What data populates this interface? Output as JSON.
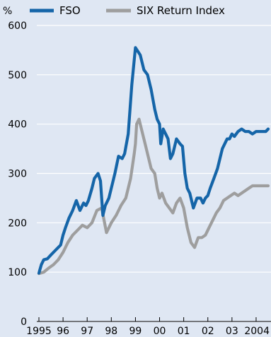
{
  "chart_data": {
    "type": "line",
    "ylabel": "%",
    "ylim": [
      0,
      600
    ],
    "xlim": [
      1995.0,
      2004.5
    ],
    "yticks": [
      0,
      100,
      200,
      300,
      400,
      500,
      600
    ],
    "xtick_labels": [
      "1995",
      "96",
      "97",
      "98",
      "99",
      "00",
      "01",
      "02",
      "03",
      "2004"
    ],
    "grid": "horizontal",
    "legend_position": "top-left",
    "series": [
      {
        "name": "FSO",
        "color": "#1565a8",
        "x": [
          1995.0,
          1995.1,
          1995.2,
          1995.35,
          1995.5,
          1995.7,
          1995.9,
          1996.0,
          1996.1,
          1996.25,
          1996.4,
          1996.55,
          1996.7,
          1996.85,
          1996.95,
          1997.05,
          1997.2,
          1997.3,
          1997.45,
          1997.55,
          1997.65,
          1997.75,
          1997.9,
          1998.0,
          1998.15,
          1998.3,
          1998.45,
          1998.55,
          1998.7,
          1998.85,
          1999.0,
          1999.2,
          1999.35,
          1999.5,
          1999.65,
          1999.8,
          1999.9,
          2000.0,
          2000.05,
          2000.15,
          2000.25,
          2000.35,
          2000.45,
          2000.55,
          2000.7,
          2000.85,
          2000.95,
          2001.05,
          2001.15,
          2001.25,
          2001.4,
          2001.55,
          2001.7,
          2001.8,
          2001.9,
          2002.0,
          2002.1,
          2002.25,
          2002.4,
          2002.5,
          2002.6,
          2002.7,
          2002.8,
          2002.9,
          2003.0,
          2003.1,
          2003.25,
          2003.4,
          2003.55,
          2003.7,
          2003.85,
          2004.0,
          2004.1,
          2004.25,
          2004.4,
          2004.5
        ],
        "values": [
          98,
          115,
          125,
          127,
          135,
          145,
          155,
          175,
          190,
          210,
          225,
          245,
          225,
          240,
          235,
          245,
          270,
          290,
          300,
          285,
          215,
          235,
          250,
          270,
          300,
          335,
          330,
          340,
          380,
          480,
          555,
          540,
          510,
          500,
          470,
          430,
          410,
          400,
          360,
          390,
          380,
          370,
          330,
          340,
          370,
          360,
          355,
          300,
          270,
          260,
          230,
          250,
          250,
          240,
          250,
          255,
          270,
          290,
          310,
          330,
          350,
          360,
          370,
          370,
          380,
          375,
          385,
          390,
          385,
          385,
          380,
          385,
          385,
          385,
          385,
          390
        ]
      },
      {
        "name": "SIX Return Index",
        "color": "#9e9e9e",
        "x": [
          1995.0,
          1995.2,
          1995.4,
          1995.6,
          1995.8,
          1996.0,
          1996.2,
          1996.4,
          1996.6,
          1996.8,
          1997.0,
          1997.2,
          1997.4,
          1997.6,
          1997.8,
          1998.0,
          1998.2,
          1998.4,
          1998.6,
          1998.8,
          1998.95,
          1999.0,
          1999.05,
          1999.15,
          1999.25,
          1999.4,
          1999.5,
          1999.65,
          1999.8,
          1999.9,
          2000.0,
          2000.1,
          2000.25,
          2000.4,
          2000.55,
          2000.7,
          2000.85,
          2001.0,
          2001.15,
          2001.3,
          2001.45,
          2001.6,
          2001.75,
          2001.9,
          2002.05,
          2002.2,
          2002.35,
          2002.5,
          2002.65,
          2002.8,
          2002.95,
          2003.1,
          2003.25,
          2003.4,
          2003.55,
          2003.7,
          2003.85,
          2004.0,
          2004.15,
          2004.3,
          2004.5
        ],
        "values": [
          97,
          100,
          108,
          115,
          125,
          140,
          160,
          175,
          185,
          195,
          190,
          200,
          225,
          230,
          180,
          200,
          215,
          235,
          250,
          290,
          340,
          360,
          400,
          410,
          390,
          360,
          340,
          310,
          300,
          270,
          250,
          260,
          240,
          230,
          220,
          240,
          250,
          230,
          190,
          160,
          150,
          170,
          170,
          175,
          190,
          205,
          220,
          230,
          245,
          250,
          255,
          260,
          255,
          260,
          265,
          270,
          275,
          275,
          275,
          275,
          275
        ]
      }
    ]
  }
}
